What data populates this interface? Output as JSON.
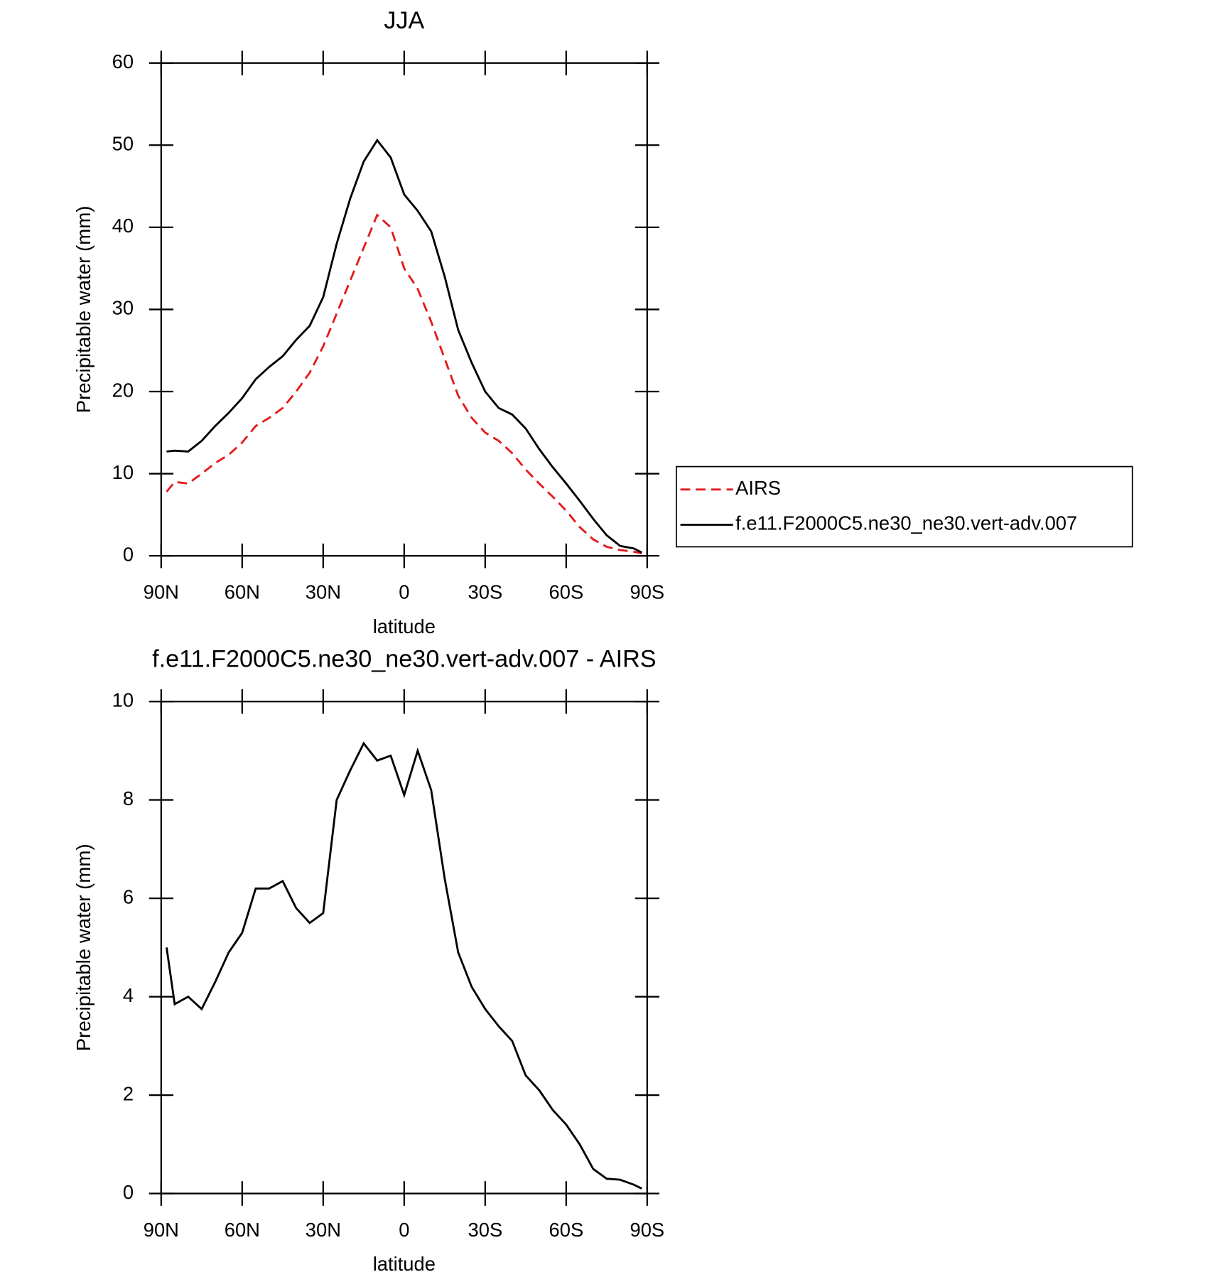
{
  "chart_data": [
    {
      "type": "line",
      "title": "JJA",
      "xlabel": "latitude",
      "ylabel": "Precipitable water (mm)",
      "x": [
        88,
        85,
        80,
        75,
        70,
        65,
        60,
        55,
        50,
        45,
        40,
        35,
        30,
        25,
        20,
        15,
        10,
        5,
        0,
        -5,
        -10,
        -15,
        -20,
        -25,
        -30,
        -35,
        -40,
        -45,
        -50,
        -55,
        -60,
        -65,
        -70,
        -75,
        -80,
        -85,
        -88
      ],
      "series": [
        {
          "name": "AIRS",
          "color": "#e41a1c",
          "dashed": true,
          "values": [
            7.8,
            9.0,
            8.8,
            10,
            11.3,
            12.3,
            13.8,
            15.8,
            16.8,
            18,
            20,
            22.3,
            25.5,
            29.5,
            33.5,
            37.5,
            41.5,
            40,
            35,
            32.5,
            28.5,
            24,
            19.5,
            16.8,
            15,
            14,
            12.5,
            10.5,
            8.8,
            7.2,
            5.5,
            3.5,
            2,
            1.1,
            0.7,
            0.5,
            0.3
          ]
        },
        {
          "name": "f.e11.F2000C5.ne30_ne30.vert-adv.007",
          "color": "#000000",
          "dashed": false,
          "values": [
            12.7,
            12.8,
            12.7,
            14,
            15.8,
            17.4,
            19.2,
            21.5,
            23,
            24.3,
            26.3,
            28,
            31.5,
            38,
            43.5,
            48,
            50.6,
            48.5,
            44,
            42,
            39.5,
            34,
            27.5,
            23.5,
            20,
            18,
            17.2,
            15.5,
            13,
            10.8,
            8.8,
            6.7,
            4.5,
            2.5,
            1.2,
            0.9,
            0.4
          ]
        }
      ],
      "xlim": [
        90,
        -90
      ],
      "xticks": [
        {
          "value": 90,
          "label": "90N"
        },
        {
          "value": 60,
          "label": "60N"
        },
        {
          "value": 30,
          "label": "30N"
        },
        0,
        {
          "value": -30,
          "label": "30S"
        },
        {
          "value": -60,
          "label": "60S"
        },
        {
          "value": -90,
          "label": "90S"
        }
      ],
      "ylim": [
        0,
        60
      ],
      "yticks": [
        0,
        10,
        20,
        30,
        40,
        50,
        60
      ],
      "legend": "right"
    },
    {
      "type": "line",
      "title": "f.e11.F2000C5.ne30_ne30.vert-adv.007 - AIRS",
      "xlabel": "latitude",
      "ylabel": "Precipitable water (mm)",
      "x": [
        88,
        85,
        80,
        75,
        70,
        65,
        60,
        55,
        50,
        45,
        40,
        35,
        30,
        25,
        20,
        15,
        10,
        5,
        0,
        -5,
        -10,
        -15,
        -20,
        -25,
        -30,
        -35,
        -40,
        -45,
        -50,
        -55,
        -60,
        -65,
        -70,
        -75,
        -80,
        -85,
        -88
      ],
      "color": "#000000",
      "values": [
        5.0,
        3.85,
        4.0,
        3.75,
        4.3,
        4.9,
        5.3,
        6.2,
        6.2,
        6.35,
        5.8,
        5.5,
        5.7,
        8.0,
        8.6,
        9.15,
        8.8,
        8.9,
        8.1,
        9.0,
        8.2,
        6.4,
        4.9,
        4.2,
        3.75,
        3.4,
        3.1,
        2.4,
        2.1,
        1.7,
        1.4,
        1.0,
        0.5,
        0.3,
        0.28,
        0.18,
        0.1
      ],
      "xlim": [
        90,
        -90
      ],
      "xticks": [
        {
          "value": 90,
          "label": "90N"
        },
        {
          "value": 60,
          "label": "60N"
        },
        {
          "value": 30,
          "label": "30N"
        },
        0,
        {
          "value": -30,
          "label": "30S"
        },
        {
          "value": -60,
          "label": "60S"
        },
        {
          "value": -90,
          "label": "90S"
        }
      ],
      "ylim": [
        0,
        10
      ],
      "yticks": [
        0,
        2,
        4,
        6,
        8,
        10
      ]
    }
  ]
}
